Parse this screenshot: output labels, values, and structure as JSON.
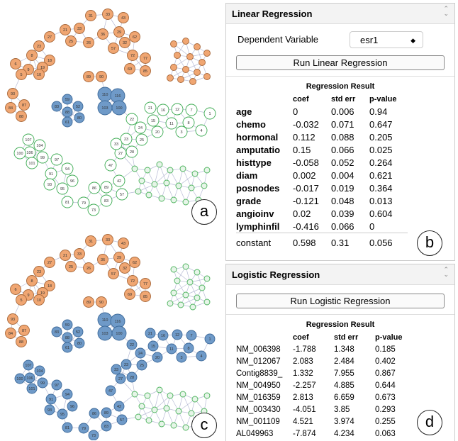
{
  "network": {
    "nodes": [
      "31",
      "33",
      "43",
      "21",
      "33",
      "36",
      "29",
      "62",
      "27",
      "25",
      "26",
      "57",
      "72",
      "77",
      "23",
      "8",
      "18",
      "19",
      "9",
      "6",
      "5",
      "10",
      "69",
      "85",
      "32",
      "89",
      "90",
      "93",
      "84",
      "87",
      "88",
      "83",
      "59",
      "52",
      "88",
      "80",
      "61",
      "110",
      "116",
      "103",
      "100",
      "107",
      "104",
      "106",
      "100",
      "99",
      "101",
      "97",
      "91",
      "94",
      "96",
      "93",
      "95",
      "81",
      "79",
      "73",
      "83",
      "86",
      "89",
      "57",
      "42",
      "47",
      "27",
      "23",
      "22",
      "24",
      "15",
      "16",
      "12",
      "7",
      "1",
      "20",
      "11",
      "8",
      "4",
      "3",
      "25",
      "28",
      "33",
      "21"
    ]
  },
  "panel_labels": [
    "a",
    "b",
    "c",
    "d"
  ],
  "linear": {
    "title": "Linear Regression",
    "dependent_label": "Dependent Variable",
    "dependent_value": "esr1",
    "button": "Run Linear Regression",
    "result_title": "Regression Result",
    "columns": [
      "coef",
      "std err",
      "p-value"
    ],
    "rows": [
      [
        "age",
        0,
        0.006,
        0.94
      ],
      [
        "chemo",
        -0.032,
        0.071,
        0.647
      ],
      [
        "hormonal",
        0.112,
        0.088,
        0.205
      ],
      [
        "amputatio",
        0.15,
        0.066,
        0.025
      ],
      [
        "histtype",
        -0.058,
        0.052,
        0.264
      ],
      [
        "diam",
        0.002,
        0.004,
        0.621
      ],
      [
        "posnodes",
        -0.017,
        0.019,
        0.364
      ],
      [
        "grade",
        -0.121,
        0.048,
        0.013
      ],
      [
        "angioinv",
        0.02,
        0.039,
        0.604
      ],
      [
        "lymphinfil",
        -0.416,
        0.066,
        0
      ]
    ],
    "constant": [
      "constant",
      0.598,
      0.31,
      0.056
    ]
  },
  "logistic": {
    "title": "Logistic Regression",
    "button": "Run Logistic Regression",
    "result_title": "Regression Result",
    "columns": [
      "coef",
      "std err",
      "p-value"
    ],
    "rows": [
      [
        "NM_006398",
        -1.788,
        1.348,
        0.185
      ],
      [
        "NM_012067",
        2.083,
        2.484,
        0.402
      ],
      [
        "Contig8839_",
        1.332,
        7.955,
        0.867
      ],
      [
        "NM_004950",
        -2.257,
        4.885,
        0.644
      ],
      [
        "NM_016359",
        2.813,
        6.659,
        0.673
      ],
      [
        "NM_003430",
        -4.051,
        3.85,
        0.293
      ],
      [
        "NM_001109",
        4.521,
        3.974,
        0.255
      ],
      [
        "AL049963",
        -7.874,
        4.234,
        0.063
      ]
    ]
  }
}
